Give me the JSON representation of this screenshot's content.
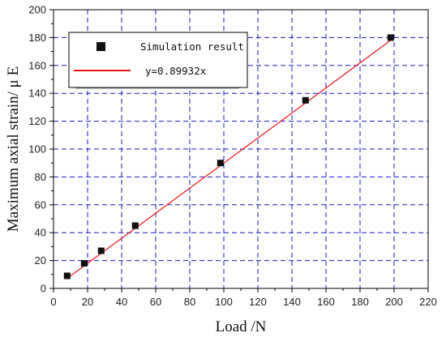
{
  "chart_data": {
    "type": "scatter",
    "xlabel": "Load /N",
    "ylabel": "Maximum axial strain/ μ E",
    "xlim": [
      0,
      220
    ],
    "ylim": [
      0,
      200
    ],
    "x_ticks": [
      0,
      20,
      40,
      60,
      80,
      100,
      120,
      140,
      160,
      180,
      200,
      220
    ],
    "y_ticks": [
      0,
      20,
      40,
      60,
      80,
      100,
      120,
      140,
      160,
      180,
      200
    ],
    "grid": true,
    "legend_position": "top-left",
    "series": [
      {
        "name": "Simulation result",
        "kind": "scatter",
        "marker": "square",
        "color": "#111111",
        "x": [
          8,
          18,
          28,
          48,
          98,
          148,
          198
        ],
        "y": [
          9,
          18,
          27,
          45,
          90,
          135,
          180
        ]
      },
      {
        "name": "y=0.89932x",
        "kind": "line",
        "color": "#ee1111",
        "slope": 0.89932,
        "x_range": [
          8,
          200
        ]
      }
    ],
    "grid_color": "#1a1acc",
    "axis_color": "#000000"
  }
}
